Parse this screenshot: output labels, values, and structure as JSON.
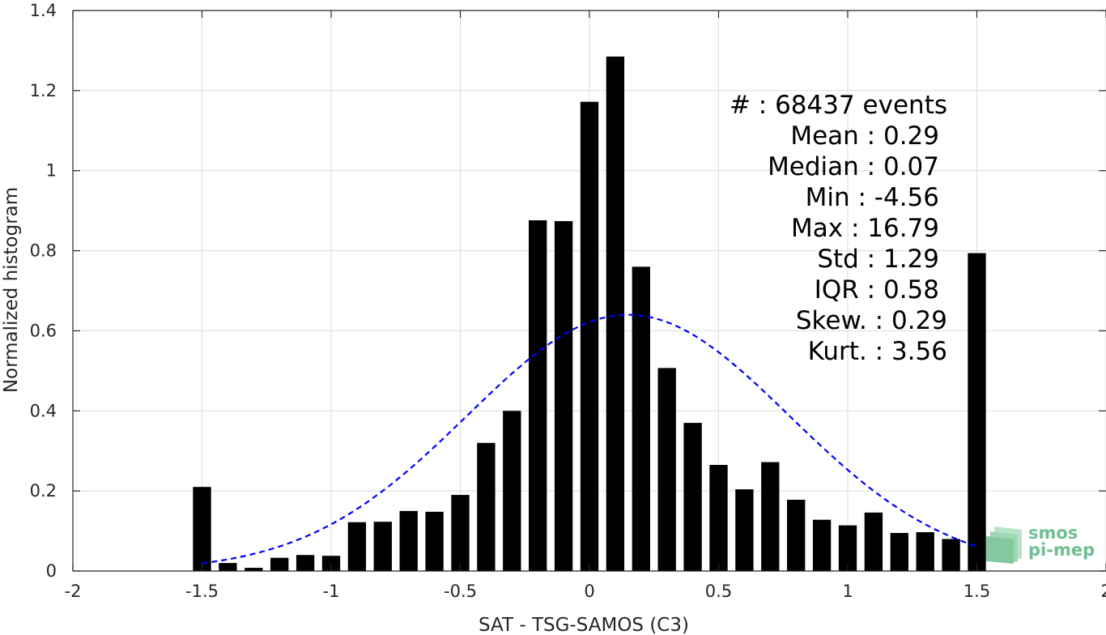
{
  "chart_data": {
    "type": "bar",
    "xlabel": "SAT - TSG-SAMOS (C3)",
    "ylabel": "Normalized histogram",
    "xlim": [
      -2,
      2
    ],
    "ylim": [
      0,
      1.4
    ],
    "xticks": [
      "-2",
      "-1.5",
      "-1",
      "-0.5",
      "0",
      "0.5",
      "1",
      "1.5",
      "2"
    ],
    "yticks": [
      "0",
      "0.2",
      "0.4",
      "0.6",
      "0.8",
      "1",
      "1.2",
      "1.4"
    ],
    "grid": true,
    "bar_width": 0.07,
    "bars": [
      {
        "x": -1.5,
        "y": 0.21
      },
      {
        "x": -1.4,
        "y": 0.02
      },
      {
        "x": -1.3,
        "y": 0.008
      },
      {
        "x": -1.2,
        "y": 0.033
      },
      {
        "x": -1.1,
        "y": 0.04
      },
      {
        "x": -1.0,
        "y": 0.038
      },
      {
        "x": -0.9,
        "y": 0.122
      },
      {
        "x": -0.8,
        "y": 0.123
      },
      {
        "x": -0.7,
        "y": 0.15
      },
      {
        "x": -0.6,
        "y": 0.148
      },
      {
        "x": -0.5,
        "y": 0.19
      },
      {
        "x": -0.4,
        "y": 0.32
      },
      {
        "x": -0.3,
        "y": 0.4
      },
      {
        "x": -0.2,
        "y": 0.876
      },
      {
        "x": -0.1,
        "y": 0.874
      },
      {
        "x": 0.0,
        "y": 1.172
      },
      {
        "x": 0.1,
        "y": 1.285
      },
      {
        "x": 0.2,
        "y": 0.76
      },
      {
        "x": 0.3,
        "y": 0.507
      },
      {
        "x": 0.4,
        "y": 0.37
      },
      {
        "x": 0.5,
        "y": 0.265
      },
      {
        "x": 0.6,
        "y": 0.204
      },
      {
        "x": 0.7,
        "y": 0.272
      },
      {
        "x": 0.8,
        "y": 0.178
      },
      {
        "x": 0.9,
        "y": 0.128
      },
      {
        "x": 1.0,
        "y": 0.114
      },
      {
        "x": 1.1,
        "y": 0.146
      },
      {
        "x": 1.2,
        "y": 0.095
      },
      {
        "x": 1.3,
        "y": 0.097
      },
      {
        "x": 1.4,
        "y": 0.08
      },
      {
        "x": 1.5,
        "y": 0.794
      }
    ],
    "gaussian_fit": {
      "mean": 0.15,
      "peak": 0.64,
      "x_range": [
        -1.5,
        1.5
      ]
    },
    "colors": {
      "bars": "#000000",
      "fit_line": "#0000ff",
      "grid": "#dcdcdc"
    }
  },
  "stats": [
    {
      "name": "#  ",
      "value": "68437 events"
    },
    {
      "name": "Mean",
      "value": "0.29"
    },
    {
      "name": "Median",
      "value": "0.07"
    },
    {
      "name": "Min",
      "value": "-4.56"
    },
    {
      "name": "Max",
      "value": "16.79"
    },
    {
      "name": "Std",
      "value": "1.29"
    },
    {
      "name": "IQR",
      "value": "0.58"
    },
    {
      "name": "Skew.",
      "value": "0.29"
    },
    {
      "name": "Kurt.",
      "value": "3.56"
    }
  ],
  "logo": {
    "line1": "smos",
    "line2": "pi-mep",
    "color": "#6fbf92"
  }
}
